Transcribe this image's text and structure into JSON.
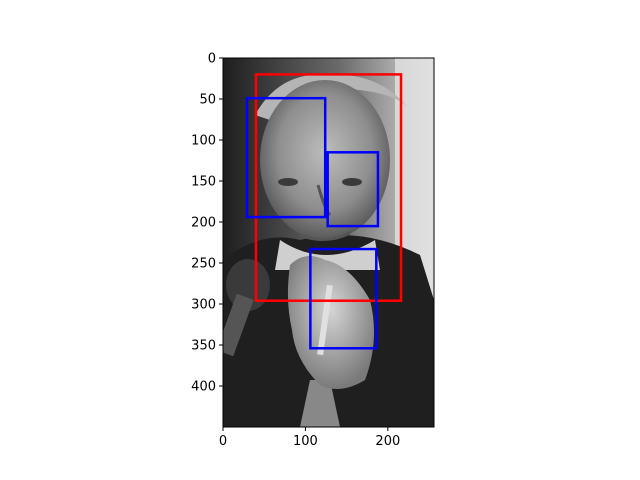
{
  "chart_data": {
    "type": "scatter",
    "title": "",
    "xlabel": "",
    "ylabel": "",
    "xlim": [
      0,
      256
    ],
    "ylim": [
      450,
      0
    ],
    "y_inverted": true,
    "grid": false,
    "background": "grayscale photograph of a man in a suit holding a pen in front of a microphone",
    "x_ticks": [
      {
        "value": 0,
        "label": "0"
      },
      {
        "value": 100,
        "label": "100"
      },
      {
        "value": 200,
        "label": "200"
      }
    ],
    "y_ticks": [
      {
        "value": 0,
        "label": "0"
      },
      {
        "value": 50,
        "label": "50"
      },
      {
        "value": 100,
        "label": "100"
      },
      {
        "value": 150,
        "label": "150"
      },
      {
        "value": 200,
        "label": "200"
      },
      {
        "value": 250,
        "label": "250"
      },
      {
        "value": 300,
        "label": "300"
      },
      {
        "value": 350,
        "label": "350"
      },
      {
        "value": 400,
        "label": "400"
      }
    ],
    "boxes": [
      {
        "color": "#ff0000",
        "x0": 40,
        "y0": 20,
        "x1": 216,
        "y1": 296
      },
      {
        "color": "#0000ff",
        "x0": 29,
        "y0": 49,
        "x1": 124,
        "y1": 194
      },
      {
        "color": "#0000ff",
        "x0": 127,
        "y0": 115,
        "x1": 188,
        "y1": 205
      },
      {
        "color": "#0000ff",
        "x0": 106,
        "y0": 233,
        "x1": 186,
        "y1": 354
      }
    ]
  }
}
